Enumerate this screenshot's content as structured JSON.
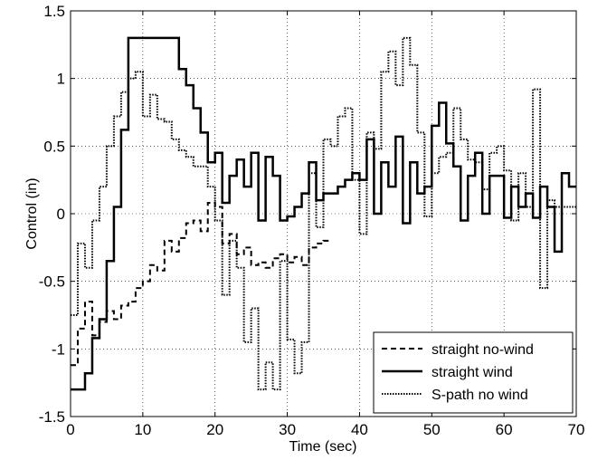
{
  "chart_data": {
    "type": "line",
    "xlabel": "Time (sec)",
    "ylabel": "Control (in)",
    "xlim": [
      0,
      70
    ],
    "ylim": [
      -1.5,
      1.5
    ],
    "xticks": [
      0,
      10,
      20,
      30,
      40,
      50,
      60,
      70
    ],
    "xtick_labels": [
      "0",
      "10",
      "20",
      "30",
      "40",
      "50",
      "60",
      "70"
    ],
    "yticks": [
      -1.5,
      -1,
      -0.5,
      0,
      0.5,
      1,
      1.5
    ],
    "ytick_labels": [
      "-1.5",
      "-1",
      "-0.5",
      "0",
      "0.5",
      "1",
      "1.5"
    ],
    "grid": true,
    "legend_position": "bottom-right",
    "series": [
      {
        "name": "straight no-wind",
        "style": "dashed",
        "color": "#000000",
        "x": [
          0,
          1,
          2,
          3,
          4,
          5,
          6,
          7,
          8,
          9,
          10,
          11,
          12,
          13,
          14,
          15,
          16,
          17,
          18,
          19,
          20,
          21,
          22,
          23,
          24,
          25,
          26,
          27,
          28,
          29,
          30,
          31,
          32,
          33,
          34,
          35,
          36
        ],
        "y": [
          -1.12,
          -0.85,
          -0.65,
          -0.9,
          -0.8,
          -0.72,
          -0.78,
          -0.68,
          -0.65,
          -0.55,
          -0.5,
          -0.38,
          -0.42,
          -0.2,
          -0.28,
          -0.18,
          -0.07,
          -0.05,
          -0.13,
          0.08,
          0.05,
          -0.22,
          -0.15,
          -0.3,
          -0.25,
          -0.38,
          -0.36,
          -0.4,
          -0.33,
          -0.3,
          -0.36,
          -0.32,
          -0.38,
          -0.25,
          -0.22,
          -0.2,
          -0.2
        ]
      },
      {
        "name": "straight wind",
        "style": "solid",
        "color": "#000000",
        "x": [
          0,
          1,
          2,
          3,
          4,
          5,
          6,
          7,
          8,
          9,
          10,
          11,
          12,
          13,
          14,
          15,
          16,
          17,
          18,
          19,
          20,
          21,
          22,
          23,
          24,
          25,
          26,
          27,
          28,
          29,
          30,
          31,
          32,
          33,
          34,
          35,
          36,
          37,
          38,
          39,
          40,
          41,
          42,
          43,
          44,
          45,
          46,
          47,
          48,
          49,
          50,
          51,
          52,
          53,
          54,
          55,
          56,
          57,
          58,
          59,
          60,
          61,
          62,
          63,
          64,
          65,
          66,
          67,
          68,
          69,
          70
        ],
        "y": [
          -1.3,
          -1.3,
          -1.18,
          -0.92,
          -0.78,
          -0.35,
          0.05,
          0.62,
          1.3,
          1.3,
          1.3,
          1.3,
          1.3,
          1.3,
          1.3,
          1.07,
          0.95,
          0.78,
          0.6,
          0.38,
          0.45,
          0.08,
          0.28,
          0.4,
          0.2,
          0.45,
          -0.05,
          0.42,
          0.28,
          -0.05,
          -0.02,
          0.05,
          0.15,
          0.38,
          0.1,
          0.15,
          0.15,
          0.2,
          0.25,
          0.3,
          0.25,
          0.55,
          0.0,
          0.38,
          0.2,
          0.57,
          -0.07,
          0.38,
          0.15,
          0.2,
          0.65,
          0.82,
          0.52,
          0.35,
          -0.05,
          0.28,
          0.45,
          0.0,
          0.28,
          0.28,
          -0.03,
          0.2,
          0.05,
          0.15,
          -0.03,
          0.2,
          0.05,
          -0.28,
          0.3,
          0.2,
          0.2
        ]
      },
      {
        "name": "S-path no wind",
        "style": "dotted",
        "color": "#000000",
        "x": [
          0,
          1,
          2,
          3,
          4,
          5,
          6,
          7,
          8,
          9,
          10,
          11,
          12,
          13,
          14,
          15,
          16,
          17,
          18,
          19,
          20,
          21,
          22,
          23,
          24,
          25,
          26,
          27,
          28,
          29,
          30,
          31,
          32,
          33,
          34,
          35,
          36,
          37,
          38,
          39,
          40,
          41,
          42,
          43,
          44,
          45,
          46,
          47,
          48,
          49,
          50,
          51,
          52,
          53,
          54,
          55,
          56,
          57,
          58,
          59,
          60,
          61,
          62,
          63,
          64,
          65,
          66,
          67,
          68,
          69,
          70
        ],
        "y": [
          -0.75,
          -0.22,
          -0.4,
          -0.05,
          0.2,
          0.5,
          0.72,
          0.9,
          1.0,
          1.05,
          0.72,
          0.88,
          0.7,
          0.68,
          0.55,
          0.47,
          0.42,
          0.35,
          0.35,
          0.2,
          -0.05,
          -0.6,
          -0.2,
          -0.4,
          -0.95,
          -0.7,
          -1.3,
          -1.1,
          -1.3,
          -0.35,
          -0.93,
          -1.18,
          -0.95,
          0.3,
          -0.1,
          0.55,
          0.5,
          0.72,
          0.78,
          0.25,
          -0.15,
          0.6,
          0.48,
          1.05,
          1.2,
          0.95,
          1.3,
          1.1,
          0.6,
          -0.02,
          0.3,
          0.42,
          0.45,
          0.78,
          0.55,
          0.4,
          0.38,
          0.18,
          0.45,
          0.5,
          0.32,
          -0.05,
          0.3,
          0.05,
          0.92,
          -0.55,
          0.1,
          0.05,
          0.05,
          0.05,
          0.05
        ]
      }
    ]
  }
}
